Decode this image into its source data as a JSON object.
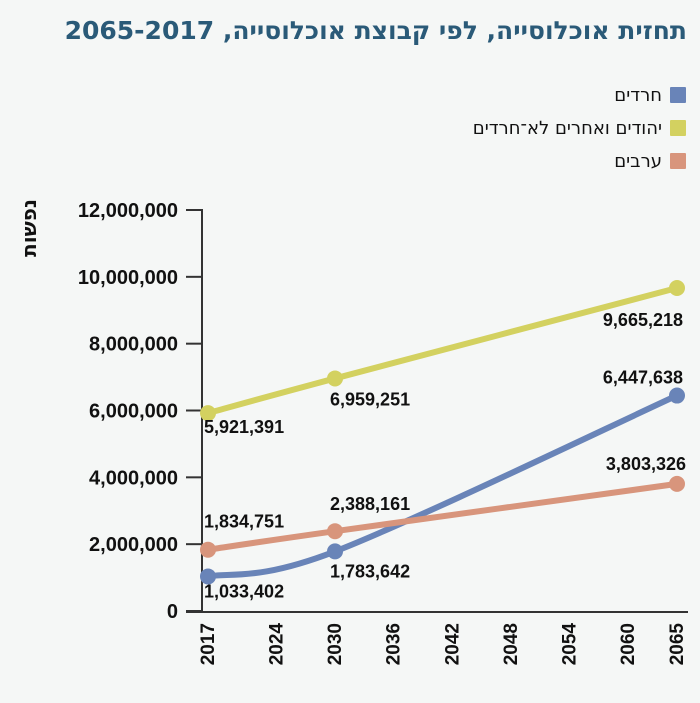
{
  "page": {
    "background": "#f5f7f6"
  },
  "chart_data": {
    "type": "line",
    "title": "תחזית אוכלוסייה, לפי קבוצת אוכלוסייה, 2065-2017",
    "title_color": "#2a5a78",
    "ylabel": "נפשות",
    "xlabel": "",
    "x": [
      2017,
      2030,
      2065
    ],
    "xticks": [
      2017,
      2024,
      2030,
      2036,
      2042,
      2048,
      2054,
      2060,
      2065
    ],
    "yticks": [
      0,
      2000000,
      4000000,
      6000000,
      8000000,
      10000000,
      12000000
    ],
    "xlim": [
      2017,
      2065
    ],
    "ylim": [
      0,
      12000000
    ],
    "grid": false,
    "legend_position": "top-right",
    "axis_color": "#333333",
    "series": [
      {
        "key": "haredim",
        "name": "חרדים",
        "color": "#6984b8",
        "values": [
          1033402,
          1783642,
          6447638
        ]
      },
      {
        "key": "jews-non-haredi",
        "name": "יהודים ואחרים לא־חרדים",
        "color": "#d3d160",
        "values": [
          5921391,
          6959251,
          9665218
        ]
      },
      {
        "key": "arabs",
        "name": "ערבים",
        "color": "#d8957c",
        "values": [
          1834751,
          2388161,
          3803326
        ]
      }
    ]
  }
}
